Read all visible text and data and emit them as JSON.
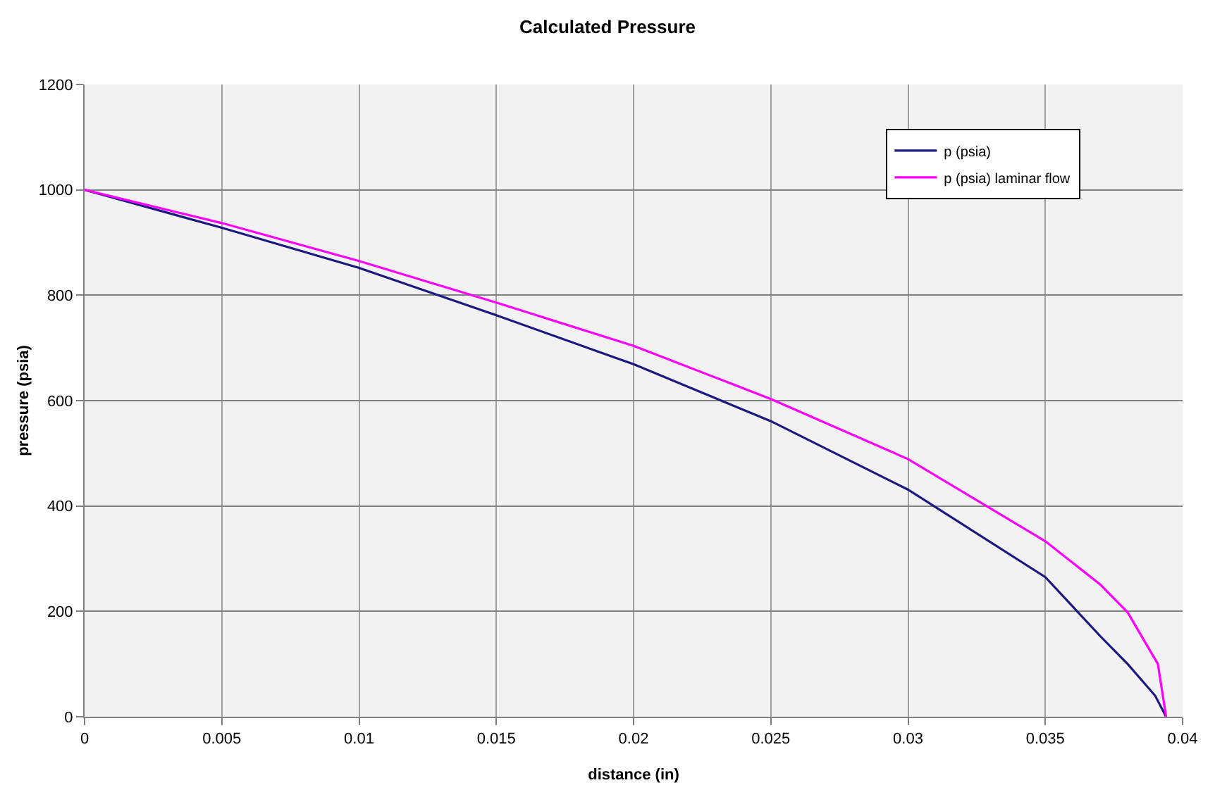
{
  "chart_data": {
    "type": "line",
    "title": "Calculated Pressure",
    "xlabel": "distance (in)",
    "ylabel": "pressure (psia)",
    "xlim": [
      0,
      0.04
    ],
    "xticks": [
      0,
      0.005,
      0.01,
      0.015,
      0.02,
      0.025,
      0.03,
      0.035,
      0.04
    ],
    "ylim": [
      0,
      1200
    ],
    "yticks": [
      0,
      200,
      400,
      600,
      800,
      1000,
      1200
    ],
    "grid": true,
    "legend": "top right",
    "marker": "none",
    "line_style": "solid",
    "series": [
      {
        "name": "p (psia)",
        "color": "#1a1a80",
        "x": [
          0,
          0.005,
          0.01,
          0.015,
          0.02,
          0.025,
          0.03,
          0.035,
          0.037,
          0.038,
          0.039,
          0.0394
        ],
        "values": [
          1000,
          928,
          852,
          762,
          669,
          561,
          431,
          265,
          153,
          100,
          40,
          0
        ]
      },
      {
        "name": "p (psia) laminar flow",
        "color": "#ff00ff",
        "x": [
          0,
          0.005,
          0.01,
          0.015,
          0.02,
          0.025,
          0.03,
          0.035,
          0.037,
          0.038,
          0.0391,
          0.0394
        ],
        "values": [
          1000,
          937,
          865,
          786,
          704,
          603,
          489,
          333,
          251,
          198,
          100,
          0
        ]
      }
    ]
  }
}
